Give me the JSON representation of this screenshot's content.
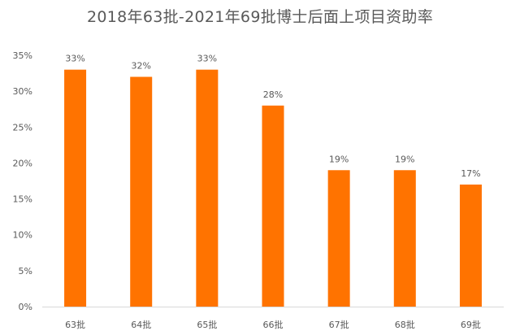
{
  "chart_data": {
    "type": "bar",
    "title": "2018年63批-2021年69批博士后面上项目资助率",
    "xlabel": "",
    "ylabel": "",
    "categories": [
      "63批",
      "64批",
      "65批",
      "66批",
      "67批",
      "68批",
      "69批"
    ],
    "values": [
      33,
      32,
      33,
      28,
      19,
      19,
      17
    ],
    "data_labels": [
      "33%",
      "32%",
      "33%",
      "28%",
      "19%",
      "19%",
      "17%"
    ],
    "ylim": [
      0,
      35
    ],
    "yticks": [
      0,
      5,
      10,
      15,
      20,
      25,
      30,
      35
    ],
    "ytick_labels": [
      "0%",
      "5%",
      "10%",
      "15%",
      "20%",
      "25%",
      "30%",
      "35%"
    ],
    "grid": false,
    "legend": "none",
    "bar_color": "#FF7300"
  }
}
